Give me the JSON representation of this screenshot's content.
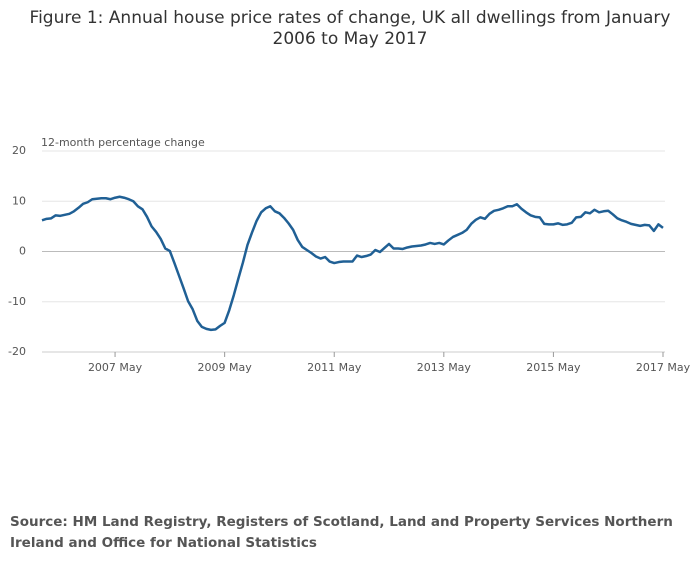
{
  "chart_data": {
    "type": "line",
    "title": "Figure 1: Annual house price rates of change, UK all dwellings from January 2006 to May 2017",
    "y_axis_label": "12-month percentage change",
    "source": "Source: HM Land Registry, Registers of Scotland, Land and Property Services Northern Ireland and Office for National Statistics",
    "categories": [
      null,
      null,
      null,
      null,
      null,
      null,
      null,
      null,
      null,
      null,
      null,
      null,
      null,
      null,
      null,
      null,
      "2007 May",
      null,
      null,
      null,
      null,
      null,
      null,
      null,
      null,
      null,
      null,
      null,
      null,
      null,
      null,
      null,
      null,
      null,
      null,
      null,
      null,
      null,
      null,
      null,
      "2009 May",
      null,
      null,
      null,
      null,
      null,
      null,
      null,
      null,
      null,
      null,
      null,
      null,
      null,
      null,
      null,
      null,
      null,
      null,
      null,
      null,
      null,
      null,
      null,
      "2011 May",
      null,
      null,
      null,
      null,
      null,
      null,
      null,
      null,
      null,
      null,
      null,
      null,
      null,
      null,
      null,
      null,
      null,
      null,
      null,
      null,
      null,
      null,
      null,
      "2013 May",
      null,
      null,
      null,
      null,
      null,
      null,
      null,
      null,
      null,
      null,
      null,
      null,
      null,
      null,
      null,
      null,
      null,
      null,
      null,
      null,
      null,
      null,
      null,
      "2015 May",
      null,
      null,
      null,
      null,
      null,
      null,
      null,
      null,
      null,
      null,
      null,
      null,
      null,
      null,
      null,
      null,
      null,
      null,
      null,
      null,
      null,
      null,
      null,
      "2017 May"
    ],
    "values": [
      6.2,
      6.5,
      6.6,
      7.2,
      7.1,
      7.3,
      7.5,
      8.0,
      8.7,
      9.5,
      9.8,
      10.4,
      10.5,
      10.6,
      10.6,
      10.4,
      10.7,
      10.9,
      10.7,
      10.4,
      10.0,
      9.0,
      8.4,
      6.9,
      5.0,
      3.9,
      2.5,
      0.6,
      0.1,
      -2.3,
      -4.8,
      -7.3,
      -9.9,
      -11.5,
      -13.8,
      -15.0,
      -15.4,
      -15.6,
      -15.5,
      -14.8,
      -14.2,
      -11.7,
      -8.7,
      -5.4,
      -2.2,
      1.3,
      3.8,
      6.1,
      7.8,
      8.6,
      9.0,
      8.0,
      7.6,
      6.7,
      5.6,
      4.3,
      2.3,
      0.9,
      0.3,
      -0.3,
      -1.0,
      -1.4,
      -1.1,
      -2.0,
      -2.3,
      -2.1,
      -2.0,
      -2.0,
      -2.0,
      -0.8,
      -1.1,
      -0.9,
      -0.6,
      0.3,
      -0.1,
      0.7,
      1.5,
      0.6,
      0.6,
      0.5,
      0.8,
      1.0,
      1.1,
      1.2,
      1.4,
      1.7,
      1.5,
      1.7,
      1.4,
      2.2,
      2.9,
      3.3,
      3.7,
      4.3,
      5.5,
      6.3,
      6.8,
      6.5,
      7.5,
      8.1,
      8.3,
      8.6,
      9.0,
      9.0,
      9.4,
      8.5,
      7.8,
      7.2,
      6.9,
      6.8,
      5.5,
      5.4,
      5.4,
      5.6,
      5.3,
      5.4,
      5.7,
      6.8,
      6.9,
      7.8,
      7.6,
      8.3,
      7.8,
      8.0,
      8.1,
      7.4,
      6.6,
      6.2,
      5.9,
      5.5,
      5.3,
      5.1,
      5.3,
      5.2,
      4.1,
      5.4,
      4.7
    ],
    "color": "#206095",
    "ylim": [
      -20,
      20
    ],
    "yticks": [
      -20,
      -10,
      0,
      10,
      20
    ],
    "grid": true
  }
}
